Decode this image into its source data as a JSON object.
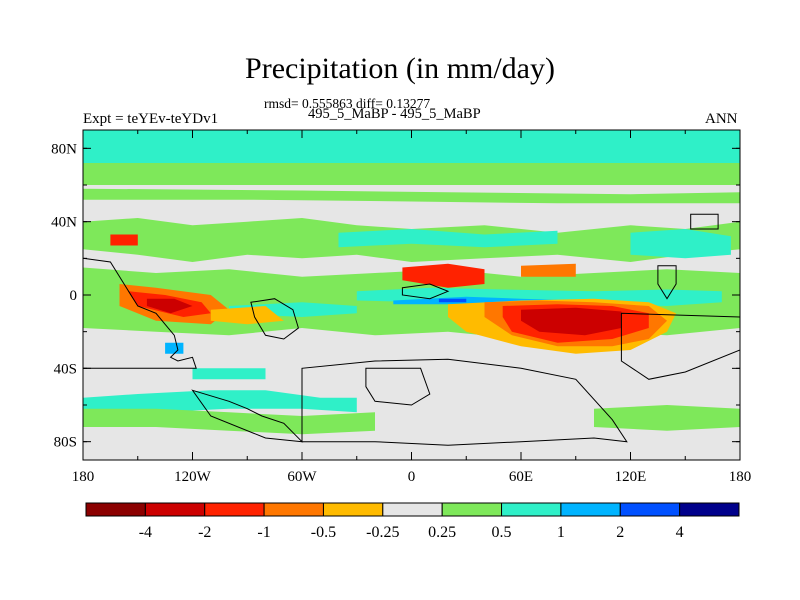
{
  "chart_data": {
    "type": "heatmap",
    "title": "Precipitation (in mm/day)",
    "subtitle": "rmsd= 0.555863 diff= 0.13277",
    "case_label": "495_5_MaBP - 495_5_MaBP",
    "left_label": "Expt = teYEv-teYDv1",
    "right_label": "ANN",
    "x_ticks": [
      "180",
      "120W",
      "60W",
      "0",
      "60E",
      "120E",
      "180"
    ],
    "y_ticks": [
      "80N",
      "40N",
      "0",
      "40S",
      "80S"
    ],
    "xlim": [
      -180,
      180
    ],
    "ylim": [
      -90,
      90
    ],
    "colorbar": {
      "colors": [
        "#8b0000",
        "#cc0000",
        "#ff2200",
        "#ff7700",
        "#ffbb00",
        "#e6e6e6",
        "#7ee85a",
        "#2ff0c8",
        "#00b4ff",
        "#0050ff",
        "#00008b"
      ],
      "labels": [
        "-4",
        "-2",
        "-1",
        "-0.5",
        "-0.25",
        "0.25",
        "0.5",
        "1",
        "2",
        "4"
      ]
    },
    "background_level": "#e6e6e6",
    "patches": [
      {
        "color": "#7ee85a",
        "lon": [
          -180,
          180,
          180,
          -180
        ],
        "lat": [
          75,
          75,
          60,
          60
        ]
      },
      {
        "color": "#2ff0c8",
        "lon": [
          -180,
          180,
          180,
          -180
        ],
        "lat": [
          90,
          90,
          72,
          72
        ]
      },
      {
        "color": "#7ee85a",
        "lon": [
          -180,
          -60,
          20,
          120,
          180,
          180,
          80,
          0,
          -90,
          -180
        ],
        "lat": [
          58,
          57,
          56,
          55,
          56,
          50,
          50,
          51,
          52,
          52
        ]
      },
      {
        "color": "#7ee85a",
        "lon": [
          -180,
          -150,
          -120,
          -90,
          -60,
          -30,
          0,
          40,
          80,
          120,
          150,
          180,
          180,
          150,
          120,
          80,
          40,
          0,
          -30,
          -60,
          -90,
          -120,
          -150,
          -180
        ],
        "lat": [
          40,
          42,
          38,
          40,
          42,
          38,
          36,
          38,
          34,
          38,
          36,
          40,
          25,
          22,
          18,
          22,
          20,
          18,
          22,
          20,
          22,
          18,
          22,
          25
        ]
      },
      {
        "color": "#7ee85a",
        "lon": [
          -180,
          -140,
          -100,
          -60,
          -20,
          20,
          60,
          100,
          140,
          180,
          180,
          140,
          100,
          60,
          20,
          -20,
          -60,
          -100,
          -140,
          -180
        ],
        "lat": [
          15,
          12,
          14,
          10,
          12,
          14,
          10,
          12,
          14,
          12,
          -18,
          -22,
          -20,
          -24,
          -20,
          -22,
          -18,
          -22,
          -20,
          -18
        ]
      },
      {
        "color": "#2ff0c8",
        "lon": [
          -30,
          10,
          50,
          100,
          140,
          170,
          170,
          140,
          100,
          50,
          10,
          -30
        ],
        "lat": [
          2,
          4,
          3,
          2,
          3,
          2,
          -4,
          -6,
          -5,
          -6,
          -4,
          -3
        ]
      },
      {
        "color": "#2ff0c8",
        "lon": [
          -100,
          -60,
          -30,
          -30,
          -60,
          -100
        ],
        "lat": [
          -6,
          -4,
          -6,
          -10,
          -12,
          -10
        ]
      },
      {
        "color": "#00b4ff",
        "lon": [
          -10,
          30,
          60,
          90,
          90,
          60,
          30,
          -10
        ],
        "lat": [
          -3,
          -1,
          -2,
          -3,
          -5,
          -6,
          -5,
          -5
        ]
      },
      {
        "color": "#0050ff",
        "lon": [
          15,
          30,
          30,
          15
        ],
        "lat": [
          -2,
          -2,
          -4,
          -4
        ]
      },
      {
        "color": "#ffbb00",
        "lon": [
          20,
          60,
          100,
          130,
          145,
          140,
          120,
          90,
          60,
          30,
          20
        ],
        "lat": [
          -5,
          -3,
          -2,
          -4,
          -10,
          -20,
          -30,
          -32,
          -28,
          -20,
          -12
        ]
      },
      {
        "color": "#ff7700",
        "lon": [
          40,
          70,
          100,
          130,
          140,
          130,
          110,
          80,
          55,
          40
        ],
        "lat": [
          -4,
          -3,
          -4,
          -6,
          -14,
          -24,
          -28,
          -28,
          -22,
          -12
        ]
      },
      {
        "color": "#ff2200",
        "lon": [
          50,
          80,
          110,
          130,
          130,
          110,
          80,
          55,
          50
        ],
        "lat": [
          -6,
          -5,
          -6,
          -10,
          -18,
          -24,
          -26,
          -20,
          -12
        ]
      },
      {
        "color": "#cc0000",
        "lon": [
          60,
          90,
          115,
          115,
          95,
          70,
          60
        ],
        "lat": [
          -8,
          -7,
          -9,
          -18,
          -22,
          -20,
          -14
        ]
      },
      {
        "color": "#ff7700",
        "lon": [
          -160,
          -140,
          -110,
          -100,
          -110,
          -140,
          -160
        ],
        "lat": [
          6,
          4,
          0,
          -8,
          -16,
          -14,
          -6
        ]
      },
      {
        "color": "#ff2200",
        "lon": [
          -155,
          -135,
          -115,
          -110,
          -125,
          -150
        ],
        "lat": [
          2,
          0,
          -4,
          -10,
          -12,
          -6
        ]
      },
      {
        "color": "#cc0000",
        "lon": [
          -145,
          -130,
          -120,
          -132,
          -145
        ],
        "lat": [
          -2,
          -2,
          -6,
          -10,
          -6
        ]
      },
      {
        "color": "#ffbb00",
        "lon": [
          -110,
          -80,
          -70,
          -90,
          -110
        ],
        "lat": [
          -8,
          -6,
          -14,
          -16,
          -14
        ]
      },
      {
        "color": "#ff2200",
        "lon": [
          -5,
          20,
          40,
          40,
          20,
          -5
        ],
        "lat": [
          15,
          17,
          14,
          6,
          4,
          8
        ]
      },
      {
        "color": "#ff7700",
        "lon": [
          60,
          90,
          90,
          60
        ],
        "lat": [
          16,
          17,
          10,
          10
        ]
      },
      {
        "color": "#2ff0c8",
        "lon": [
          -120,
          -80,
          -80,
          -120
        ],
        "lat": [
          -40,
          -40,
          -46,
          -46
        ]
      },
      {
        "color": "#2ff0c8",
        "lon": [
          -180,
          -150,
          -110,
          -80,
          -50,
          -30,
          -30,
          -60,
          -100,
          -140,
          -180
        ],
        "lat": [
          -56,
          -54,
          -52,
          -52,
          -56,
          -56,
          -64,
          -62,
          -62,
          -64,
          -64
        ]
      },
      {
        "color": "#7ee85a",
        "lon": [
          -180,
          -140,
          -100,
          -60,
          -20,
          -20,
          -60,
          -100,
          -140,
          -180
        ],
        "lat": [
          -62,
          -62,
          -64,
          -66,
          -64,
          -74,
          -76,
          -74,
          -72,
          -72
        ]
      },
      {
        "color": "#7ee85a",
        "lon": [
          100,
          140,
          180,
          180,
          140,
          100
        ],
        "lat": [
          -62,
          -60,
          -62,
          -72,
          -74,
          -72
        ]
      },
      {
        "color": "#2ff0c8",
        "lon": [
          -40,
          0,
          40,
          80,
          80,
          40,
          0,
          -40
        ],
        "lat": [
          34,
          36,
          33,
          35,
          28,
          26,
          28,
          26
        ]
      },
      {
        "color": "#2ff0c8",
        "lon": [
          120,
          150,
          175,
          175,
          150,
          120
        ],
        "lat": [
          34,
          36,
          32,
          22,
          20,
          22
        ]
      },
      {
        "color": "#ff2200",
        "lon": [
          -165,
          -150,
          -150,
          -165
        ],
        "lat": [
          33,
          33,
          27,
          27
        ]
      },
      {
        "color": "#00b4ff",
        "lon": [
          -135,
          -125,
          -125,
          -135
        ],
        "lat": [
          -26,
          -26,
          -32,
          -32
        ]
      }
    ],
    "continents": [
      {
        "lon": [
          -180,
          -165,
          -155,
          -150,
          -140,
          -135,
          -130,
          -128,
          -132,
          -128,
          -120,
          -118,
          -180
        ],
        "lat": [
          20,
          18,
          2,
          -6,
          -10,
          -16,
          -22,
          -30,
          -34,
          -36,
          -34,
          -40,
          -40
        ]
      },
      {
        "lon": [
          -120,
          -100,
          -90,
          -82,
          -70,
          -64,
          -60,
          -80,
          -110,
          -120
        ],
        "lat": [
          -52,
          -58,
          -62,
          -66,
          -70,
          -76,
          -80,
          -78,
          -66,
          -52
        ]
      },
      {
        "lon": [
          -60,
          -20,
          20,
          60,
          100,
          118,
          110,
          90,
          60,
          20,
          -20,
          -60
        ],
        "lat": [
          -80,
          -80,
          -82,
          -80,
          -78,
          -80,
          -68,
          -46,
          -40,
          -35,
          -36,
          -40
        ]
      },
      {
        "lon": [
          -88,
          -75,
          -65,
          -62,
          -70,
          -80,
          -86,
          -88
        ],
        "lat": [
          -4,
          -2,
          -8,
          -18,
          -24,
          -22,
          -12,
          -4
        ]
      },
      {
        "lon": [
          -25,
          5,
          10,
          0,
          -20,
          -25
        ],
        "lat": [
          -40,
          -40,
          -54,
          -60,
          -58,
          -50
        ]
      },
      {
        "lon": [
          -5,
          10,
          20,
          10,
          -5
        ],
        "lat": [
          4,
          6,
          2,
          -2,
          0
        ]
      },
      {
        "lon": [
          135,
          145,
          145,
          140,
          135
        ],
        "lat": [
          16,
          16,
          6,
          -2,
          6
        ]
      },
      {
        "lon": [
          153,
          168,
          168,
          153
        ],
        "lat": [
          44,
          44,
          36,
          36
        ]
      },
      {
        "lon": [
          115,
          180,
          180,
          150,
          130,
          115
        ],
        "lat": [
          -10,
          -12,
          -30,
          -42,
          -46,
          -36
        ]
      }
    ]
  }
}
